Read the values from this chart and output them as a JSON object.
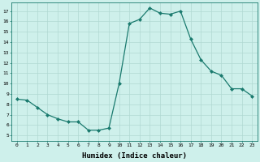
{
  "x": [
    0,
    1,
    2,
    3,
    4,
    5,
    6,
    7,
    8,
    9,
    10,
    11,
    12,
    13,
    14,
    15,
    16,
    17,
    18,
    19,
    20,
    21,
    22,
    23
  ],
  "y": [
    8.5,
    8.4,
    7.7,
    7.0,
    6.6,
    6.3,
    6.3,
    5.5,
    5.5,
    5.7,
    10.0,
    15.8,
    16.2,
    17.3,
    16.8,
    16.7,
    17.0,
    14.3,
    12.3,
    11.2,
    10.8,
    9.5,
    9.5,
    8.8
  ],
  "line_color": "#1a7a6e",
  "marker": "D",
  "markersize": 2.0,
  "linewidth": 0.9,
  "bg_color": "#cef0eb",
  "grid_color": "#b0d8d2",
  "xlabel": "Humidex (Indice chaleur)",
  "xlabel_fontsize": 6.5,
  "xtick_labels": [
    "0",
    "1",
    "2",
    "3",
    "4",
    "5",
    "6",
    "7",
    "8",
    "9",
    "10",
    "11",
    "12",
    "13",
    "14",
    "15",
    "16",
    "17",
    "18",
    "19",
    "20",
    "21",
    "22",
    "23"
  ],
  "ytick_min": 5,
  "ytick_max": 17,
  "ytick_step": 1,
  "xlim": [
    -0.5,
    23.5
  ],
  "ylim": [
    4.5,
    17.8
  ]
}
